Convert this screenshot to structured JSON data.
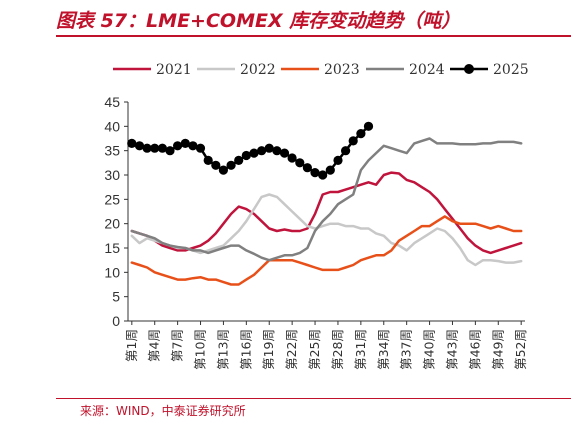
{
  "header": {
    "title": "图表 57：LME+COMEX 库存变动趋势（吨）"
  },
  "footer": {
    "source": "来源：WIND，中泰证券研究所"
  },
  "chart_data": {
    "type": "line",
    "title": "图表 57：LME+COMEX 库存变动趋势（吨）",
    "xlabel": "",
    "ylabel": "",
    "ylim": [
      0,
      45
    ],
    "yticks": [
      0,
      5,
      10,
      15,
      20,
      25,
      30,
      35,
      40,
      45
    ],
    "x_tick_labels": [
      "第1周",
      "第4周",
      "第7周",
      "第10周",
      "第13周",
      "第16周",
      "第19周",
      "第22周",
      "第25周",
      "第28周",
      "第31周",
      "第34周",
      "第37周",
      "第40周",
      "第43周",
      "第46周",
      "第49周",
      "第52周"
    ],
    "grid": false,
    "legend_position": "top",
    "series": [
      {
        "name": "2021",
        "color": "#c0143c",
        "marker": false,
        "values": [
          18.5,
          18.0,
          17.5,
          16.5,
          15.5,
          15.0,
          14.5,
          14.5,
          15.0,
          15.5,
          16.5,
          18.0,
          20.0,
          22.0,
          23.5,
          23.0,
          22.0,
          20.5,
          19.0,
          18.5,
          18.8,
          18.5,
          18.5,
          19.0,
          22.0,
          26.0,
          26.5,
          26.5,
          27.0,
          27.5,
          28.0,
          28.5,
          28.0,
          30.0,
          30.5,
          30.3,
          29.0,
          28.5,
          27.5,
          26.5,
          25.0,
          23.0,
          21.0,
          19.0,
          17.0,
          15.5,
          14.5,
          14.0,
          14.5,
          15.0,
          15.5,
          16.0
        ]
      },
      {
        "name": "2022",
        "color": "#c8c8c8",
        "marker": false,
        "values": [
          17.5,
          16.0,
          17.0,
          16.5,
          16.0,
          15.5,
          15.0,
          15.0,
          14.5,
          14.0,
          14.5,
          15.0,
          15.5,
          17.0,
          18.5,
          20.5,
          23.0,
          25.5,
          26.0,
          25.5,
          24.0,
          22.5,
          21.0,
          19.5,
          19.0,
          19.5,
          20.0,
          20.0,
          19.5,
          19.5,
          19.0,
          19.0,
          18.0,
          17.5,
          16.0,
          15.5,
          14.5,
          16.0,
          17.0,
          18.0,
          19.0,
          18.5,
          17.0,
          15.0,
          12.5,
          11.5,
          12.5,
          12.5,
          12.3,
          12.0,
          12.0,
          12.3
        ]
      },
      {
        "name": "2023",
        "color": "#e8501a",
        "marker": false,
        "values": [
          12.0,
          11.5,
          11.0,
          10.0,
          9.5,
          9.0,
          8.5,
          8.5,
          8.8,
          9.0,
          8.5,
          8.5,
          8.0,
          7.5,
          7.5,
          8.5,
          9.5,
          11.0,
          12.5,
          12.5,
          12.5,
          12.5,
          12.0,
          11.5,
          11.0,
          10.5,
          10.5,
          10.5,
          11.0,
          11.5,
          12.5,
          13.0,
          13.5,
          13.5,
          14.5,
          16.5,
          17.5,
          18.5,
          19.5,
          19.5,
          20.5,
          21.5,
          20.5,
          20.0,
          20.0,
          20.0,
          19.5,
          19.0,
          19.5,
          19.0,
          18.5,
          18.5
        ]
      },
      {
        "name": "2024",
        "color": "#808080",
        "marker": false,
        "values": [
          18.5,
          18.0,
          17.5,
          17.0,
          16.0,
          15.5,
          15.2,
          15.0,
          14.5,
          14.5,
          14.0,
          14.5,
          15.0,
          15.5,
          15.5,
          14.5,
          13.8,
          13.0,
          12.5,
          13.0,
          13.5,
          13.5,
          14.0,
          15.0,
          18.5,
          20.5,
          22.0,
          24.0,
          25.0,
          26.0,
          31.0,
          33.0,
          34.5,
          36.0,
          35.5,
          35.0,
          34.5,
          36.5,
          37.0,
          37.5,
          36.5,
          36.5,
          36.5,
          36.3,
          36.3,
          36.3,
          36.5,
          36.5,
          36.8,
          36.8,
          36.8,
          36.5
        ]
      },
      {
        "name": "2025",
        "color": "#000000",
        "marker": true,
        "values": [
          36.5,
          36.0,
          35.5,
          35.5,
          35.5,
          35.0,
          36.0,
          36.5,
          36.0,
          35.5,
          33.0,
          32.0,
          31.0,
          32.0,
          33.0,
          34.0,
          34.5,
          35.0,
          35.5,
          35.0,
          34.5,
          33.5,
          32.5,
          31.5,
          30.5,
          30.0,
          31.0,
          33.0,
          35.0,
          37.0,
          38.5,
          40.0
        ]
      }
    ]
  }
}
